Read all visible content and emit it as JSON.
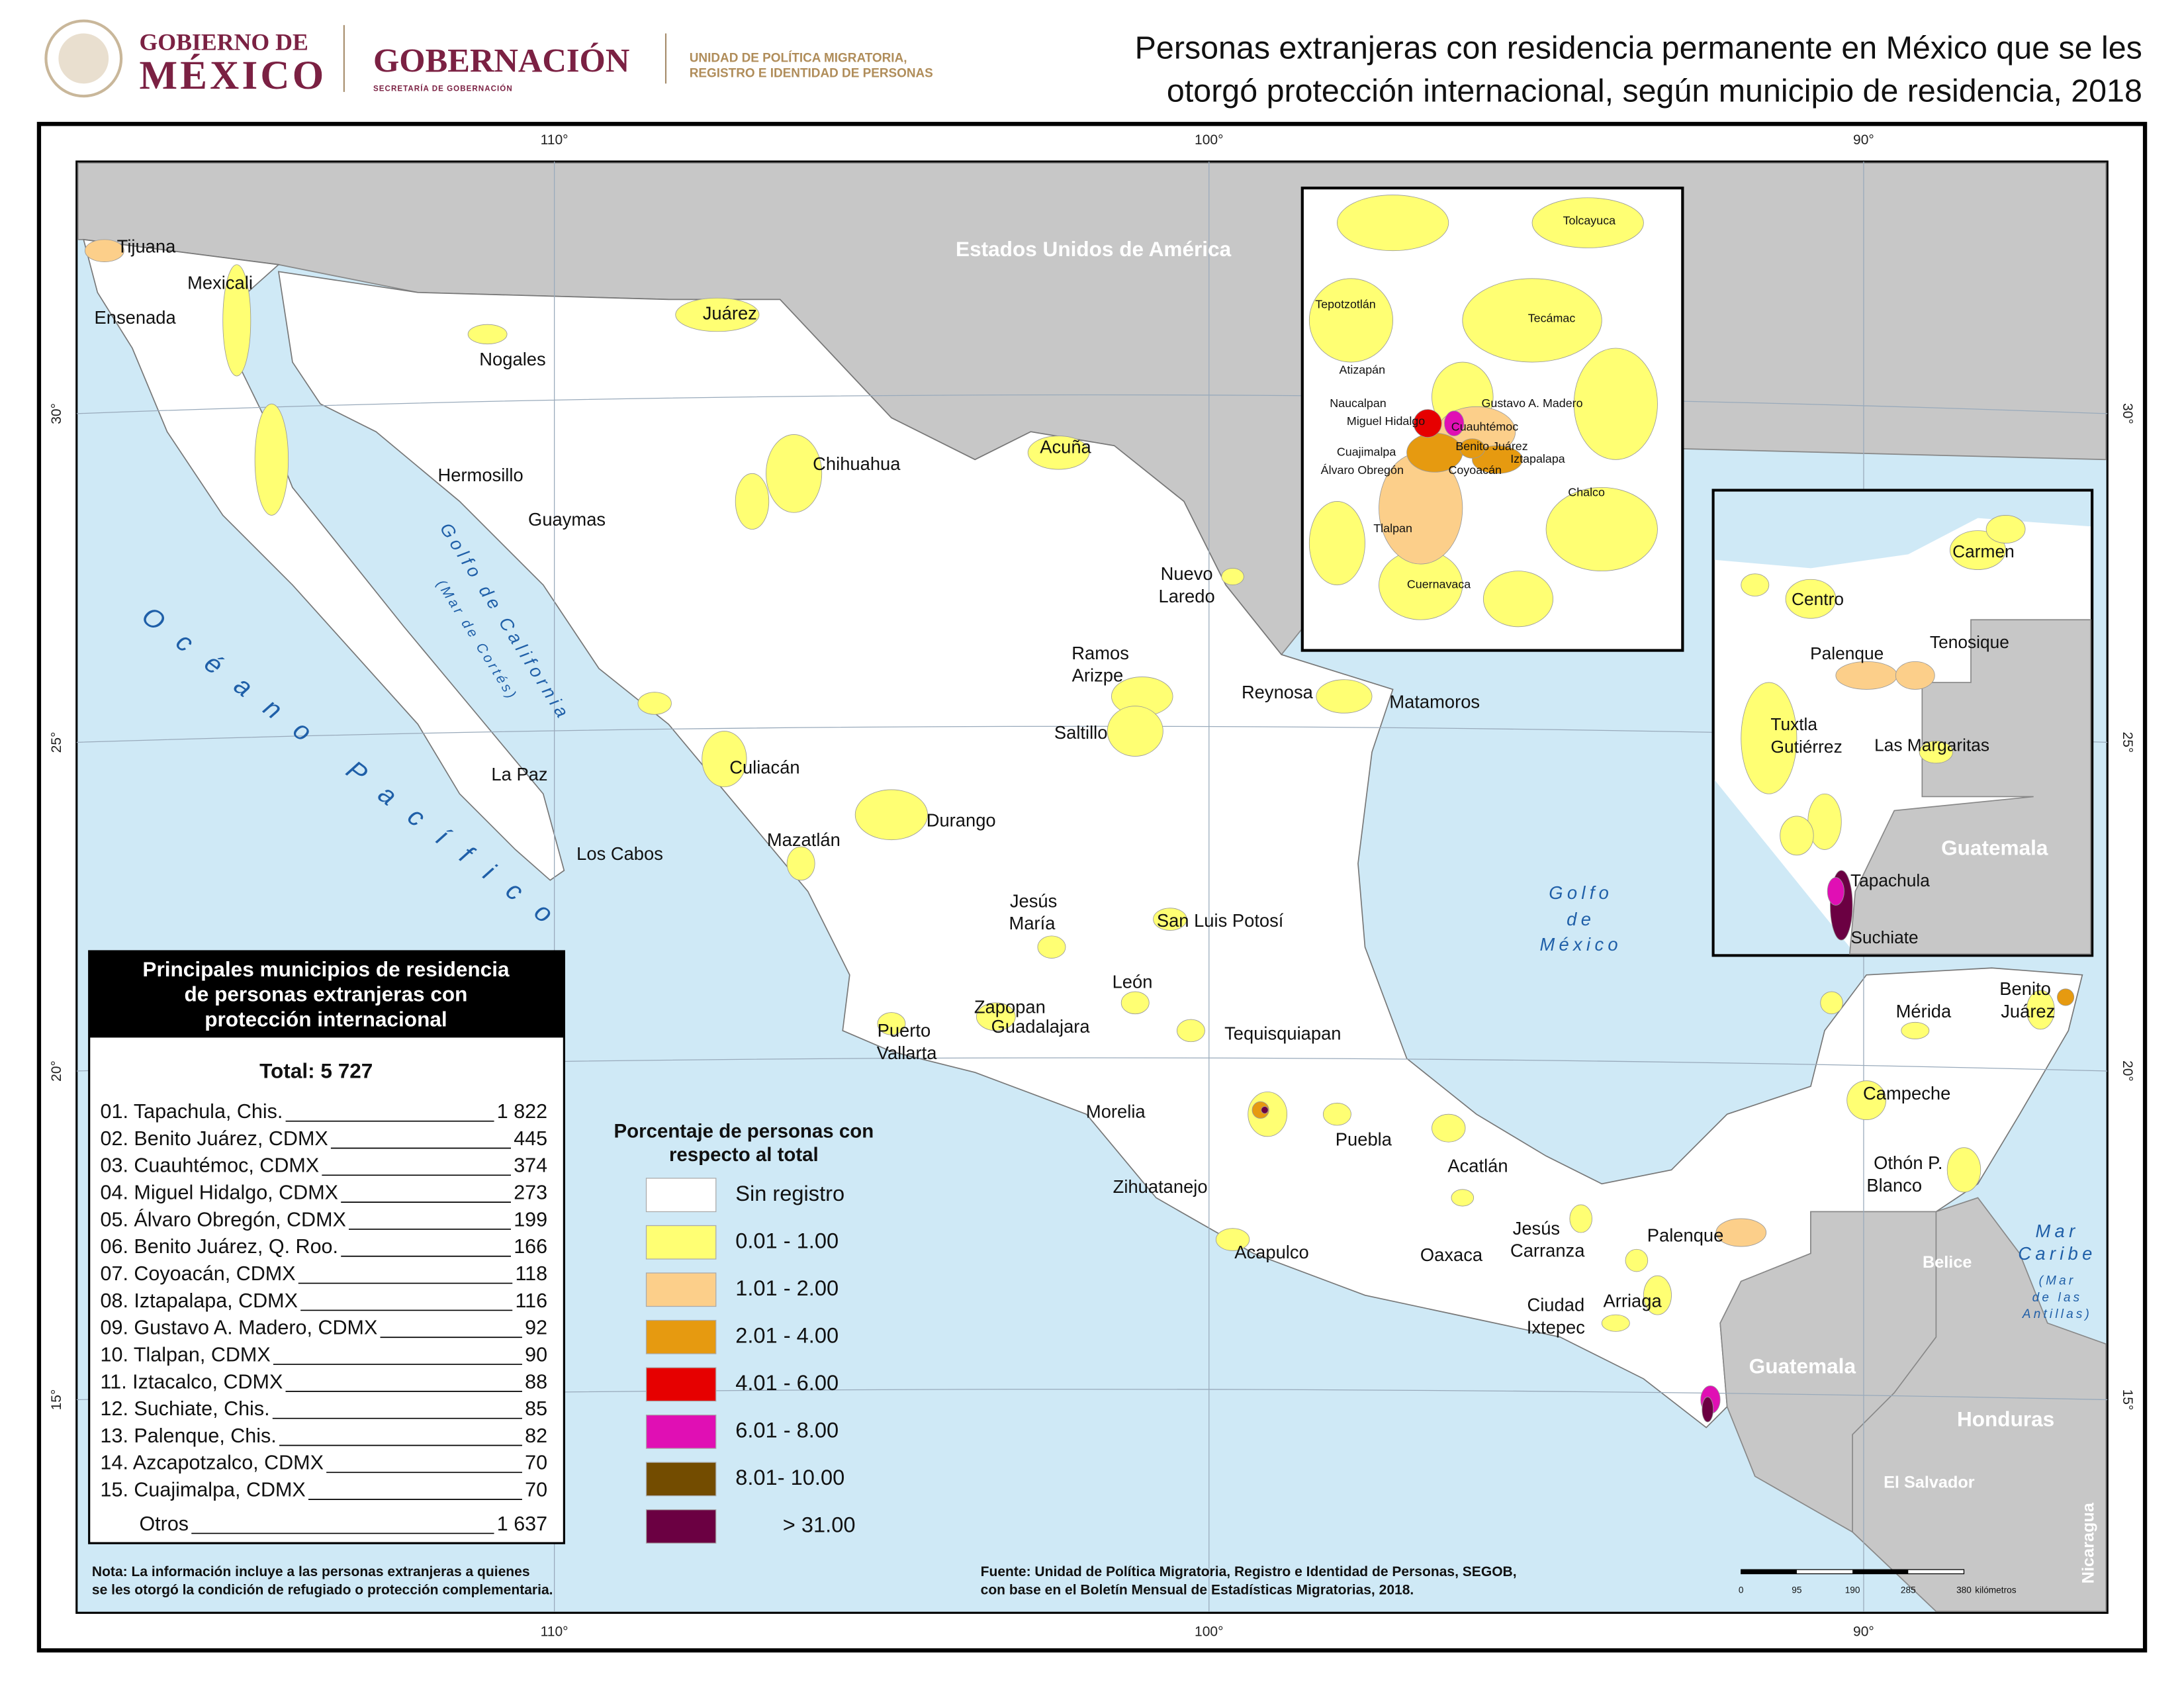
{
  "header": {
    "logo_line1": "GOBIERNO DE",
    "logo_line2": "MÉXICO",
    "ministry": "GOBERNACIÓN",
    "ministry_sub": "SECRETARÍA DE GOBERNACIÓN",
    "unit_line1": "UNIDAD DE POLÍTICA MIGRATORIA,",
    "unit_line2": "REGISTRO E IDENTIDAD DE PERSONAS",
    "title_lines": [
      "Personas extranjeras con residencia permanente en México que se les",
      "otorgó protección internacional, según municipio de residencia, 2018"
    ]
  },
  "graticule": {
    "longitudes": [
      "110°",
      "100°",
      "90°"
    ],
    "latitudes": [
      "30°",
      "25°",
      "20°",
      "15°"
    ]
  },
  "map_labels": [
    "Estados Unidos de América",
    "Tijuana",
    "Mexicali",
    "Ensenada",
    "Juárez",
    "Nogales",
    "Hermosillo",
    "Guaymas",
    "Chihuahua",
    "Acuña",
    "Nuevo",
    "Laredo",
    "Ramos",
    "Arizpe",
    "Reynosa",
    "Matamoros",
    "Saltillo",
    "Culiacán",
    "Durango",
    "Mazatlán",
    "La Paz",
    "Los Cabos",
    "Jesús",
    "María",
    "San Luis Potosí",
    "León",
    "Zapopan",
    "Guadalajara",
    "Puerto",
    "Vallarta",
    "Tequisquiapan",
    "Morelia",
    "Puebla",
    "Acatlán",
    "Zihuatanejo",
    "Jesús",
    "Carranza",
    "Oaxaca",
    "Acapulco",
    "Palenque",
    "Arriaga",
    "Ciudad",
    "Ixtepec",
    "Mérida",
    "Benito",
    "Juárez",
    "Campeche",
    "Othón P.",
    "Blanco",
    "Guatemala",
    "Belice",
    "Honduras",
    "El Salvador",
    "Nicaragua"
  ],
  "water_labels": [
    "Golfo de California",
    "(Mar de Cortés)",
    "Océano Pacífico",
    "Golfo",
    "de",
    "México",
    "Mar",
    "Caribe",
    "(Mar",
    "de las",
    "Antillas)"
  ],
  "inset_cdmx_labels": [
    "Tolcayuca",
    "Tepotzotlán",
    "Tecámac",
    "Atizapán",
    "Naucalpan",
    "Gustavo A. Madero",
    "Miguel Hidalgo",
    "Cuauhtémoc",
    "Cuajimalpa",
    "Benito Juárez",
    "Iztapalapa",
    "Álvaro Obregón",
    "Coyoacán",
    "Chalco",
    "Tlalpan",
    "Cuernavaca"
  ],
  "inset_chiapas_labels": [
    "Carmen",
    "Centro",
    "Palenque",
    "Tenosique",
    "Tuxtla",
    "Gutiérrez",
    "Las Margaritas",
    "Guatemala",
    "Tapachula",
    "Suchiate"
  ],
  "ranking": {
    "title_lines": [
      "Principales municipios de residencia",
      "de personas extranjeras con",
      "protección internacional"
    ],
    "total": "Total: 5 727",
    "rows": [
      {
        "name": "01. Tapachula, Chis.",
        "value": "1 822"
      },
      {
        "name": "02. Benito Juárez, CDMX",
        "value": "445"
      },
      {
        "name": "03. Cuauhtémoc, CDMX",
        "value": "374"
      },
      {
        "name": "04. Miguel Hidalgo, CDMX",
        "value": "273"
      },
      {
        "name": "05. Álvaro Obregón, CDMX",
        "value": "199"
      },
      {
        "name": "06. Benito Juárez, Q. Roo.",
        "value": "166"
      },
      {
        "name": "07. Coyoacán, CDMX",
        "value": "118"
      },
      {
        "name": "08. Iztapalapa, CDMX",
        "value": "116"
      },
      {
        "name": "09. Gustavo A. Madero, CDMX",
        "value": "92"
      },
      {
        "name": "10. Tlalpan, CDMX",
        "value": "90"
      },
      {
        "name": "11. Iztacalco, CDMX",
        "value": "88"
      },
      {
        "name": "12. Suchiate, Chis.",
        "value": "85"
      },
      {
        "name": "13. Palenque, Chis.",
        "value": "82"
      },
      {
        "name": "14. Azcapotzalco, CDMX",
        "value": "70"
      },
      {
        "name": "15. Cuajimalpa, CDMX",
        "value": "70"
      },
      {
        "name": "Otros",
        "value": "1 637"
      }
    ]
  },
  "legend": {
    "title_lines": [
      "Porcentaje de personas con",
      "respecto al total"
    ],
    "items": [
      {
        "label": "Sin registro",
        "color": "#ffffff"
      },
      {
        "label": "0.01 - 1.00",
        "color": "#ffff73"
      },
      {
        "label": "1.01 - 2.00",
        "color": "#fccf8a"
      },
      {
        "label": "2.01 - 4.00",
        "color": "#e69a10"
      },
      {
        "label": "4.01 - 6.00",
        "color": "#e60000"
      },
      {
        "label": "6.01 - 8.00",
        "color": "#e00fb4"
      },
      {
        "label": "8.01- 10.00",
        "color": "#734c00"
      },
      {
        "label": "> 31.00",
        "color": "#6b0042"
      }
    ]
  },
  "note_lines": [
    "Nota: La información incluye a las personas extranjeras a quienes",
    "se les otorgó la condición de refugiado o protección complementaria."
  ],
  "source_lines": [
    "Fuente: Unidad de Política Migratoria, Registro e Identidad de Personas, SEGOB,",
    "con base en el Boletín Mensual de Estadísticas Migratorias, 2018."
  ],
  "scale_bar": {
    "ticks": [
      "0",
      "95",
      "190",
      "285",
      "380"
    ],
    "unit": "kilómetros"
  }
}
